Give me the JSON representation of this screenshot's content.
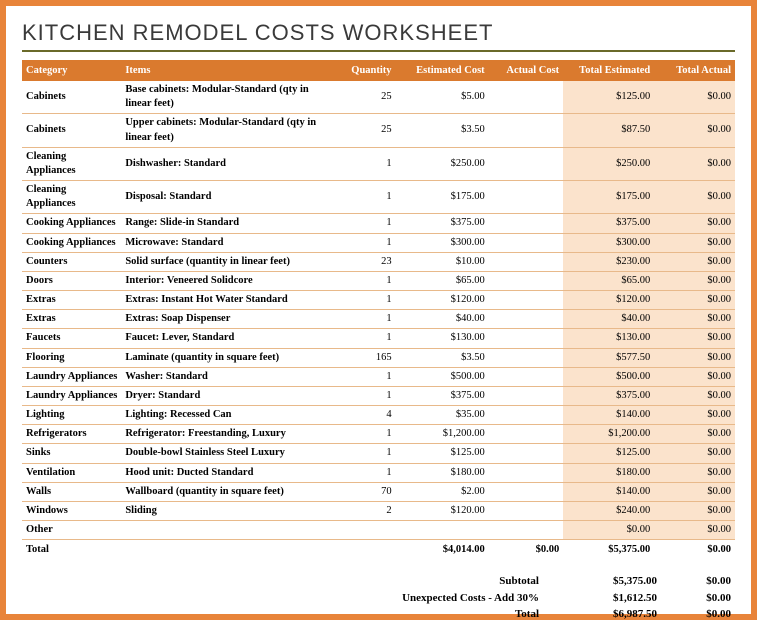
{
  "title": "KITCHEN REMODEL COSTS WORKSHEET",
  "columns": [
    "Category",
    "Items",
    "Quantity",
    "Estimated Cost",
    "Actual Cost",
    "Total Estimated",
    "Total Actual"
  ],
  "rows": [
    {
      "category": "Cabinets",
      "item": "Base cabinets: Modular-Standard (qty in linear feet)",
      "qty": "25",
      "est": "$5.00",
      "act": "",
      "tot_est": "$125.00",
      "tot_act": "$0.00"
    },
    {
      "category": "Cabinets",
      "item": "Upper cabinets: Modular-Standard (qty in linear feet)",
      "qty": "25",
      "est": "$3.50",
      "act": "",
      "tot_est": "$87.50",
      "tot_act": "$0.00"
    },
    {
      "category": "Cleaning Appliances",
      "item": "Dishwasher: Standard",
      "qty": "1",
      "est": "$250.00",
      "act": "",
      "tot_est": "$250.00",
      "tot_act": "$0.00"
    },
    {
      "category": "Cleaning Appliances",
      "item": "Disposal: Standard",
      "qty": "1",
      "est": "$175.00",
      "act": "",
      "tot_est": "$175.00",
      "tot_act": "$0.00"
    },
    {
      "category": "Cooking Appliances",
      "item": "Range: Slide-in Standard",
      "qty": "1",
      "est": "$375.00",
      "act": "",
      "tot_est": "$375.00",
      "tot_act": "$0.00"
    },
    {
      "category": "Cooking Appliances",
      "item": "Microwave: Standard",
      "qty": "1",
      "est": "$300.00",
      "act": "",
      "tot_est": "$300.00",
      "tot_act": "$0.00"
    },
    {
      "category": "Counters",
      "item": "Solid surface (quantity in linear feet)",
      "qty": "23",
      "est": "$10.00",
      "act": "",
      "tot_est": "$230.00",
      "tot_act": "$0.00"
    },
    {
      "category": "Doors",
      "item": "Interior: Veneered Solidcore",
      "qty": "1",
      "est": "$65.00",
      "act": "",
      "tot_est": "$65.00",
      "tot_act": "$0.00"
    },
    {
      "category": "Extras",
      "item": "Extras: Instant Hot Water Standard",
      "qty": "1",
      "est": "$120.00",
      "act": "",
      "tot_est": "$120.00",
      "tot_act": "$0.00"
    },
    {
      "category": "Extras",
      "item": "Extras: Soap Dispenser",
      "qty": "1",
      "est": "$40.00",
      "act": "",
      "tot_est": "$40.00",
      "tot_act": "$0.00"
    },
    {
      "category": "Faucets",
      "item": "Faucet: Lever, Standard",
      "qty": "1",
      "est": "$130.00",
      "act": "",
      "tot_est": "$130.00",
      "tot_act": "$0.00"
    },
    {
      "category": "Flooring",
      "item": "Laminate (quantity in square feet)",
      "qty": "165",
      "est": "$3.50",
      "act": "",
      "tot_est": "$577.50",
      "tot_act": "$0.00"
    },
    {
      "category": "Laundry Appliances",
      "item": "Washer: Standard",
      "qty": "1",
      "est": "$500.00",
      "act": "",
      "tot_est": "$500.00",
      "tot_act": "$0.00"
    },
    {
      "category": "Laundry Appliances",
      "item": "Dryer: Standard",
      "qty": "1",
      "est": "$375.00",
      "act": "",
      "tot_est": "$375.00",
      "tot_act": "$0.00"
    },
    {
      "category": "Lighting",
      "item": "Lighting: Recessed Can",
      "qty": "4",
      "est": "$35.00",
      "act": "",
      "tot_est": "$140.00",
      "tot_act": "$0.00"
    },
    {
      "category": "Refrigerators",
      "item": "Refrigerator: Freestanding, Luxury",
      "qty": "1",
      "est": "$1,200.00",
      "act": "",
      "tot_est": "$1,200.00",
      "tot_act": "$0.00"
    },
    {
      "category": "Sinks",
      "item": "Double-bowl Stainless Steel Luxury",
      "qty": "1",
      "est": "$125.00",
      "act": "",
      "tot_est": "$125.00",
      "tot_act": "$0.00"
    },
    {
      "category": "Ventilation",
      "item": "Hood unit: Ducted Standard",
      "qty": "1",
      "est": "$180.00",
      "act": "",
      "tot_est": "$180.00",
      "tot_act": "$0.00"
    },
    {
      "category": "Walls",
      "item": "Wallboard (quantity in square feet)",
      "qty": "70",
      "est": "$2.00",
      "act": "",
      "tot_est": "$140.00",
      "tot_act": "$0.00"
    },
    {
      "category": "Windows",
      "item": "Sliding",
      "qty": "2",
      "est": "$120.00",
      "act": "",
      "tot_est": "$240.00",
      "tot_act": "$0.00"
    },
    {
      "category": "Other",
      "item": "",
      "qty": "",
      "est": "",
      "act": "",
      "tot_est": "$0.00",
      "tot_act": "$0.00"
    }
  ],
  "total": {
    "label": "Total",
    "est": "$4,014.00",
    "act": "$0.00",
    "tot_est": "$5,375.00",
    "tot_act": "$0.00"
  },
  "summary": [
    {
      "label": "Subtotal",
      "v1": "$5,375.00",
      "v2": "$0.00"
    },
    {
      "label": "Unexpected Costs - Add 30%",
      "v1": "$1,612.50",
      "v2": "$0.00"
    },
    {
      "label": "Total",
      "v1": "$6,987.50",
      "v2": "$0.00"
    }
  ],
  "colors": {
    "frame_border": "#e8843a",
    "header_bg": "#da7a2e",
    "header_fg": "#ffffff",
    "row_border": "#e8b98a",
    "shaded_bg": "#fbe3cc",
    "title_rule": "#6a6a2a"
  }
}
